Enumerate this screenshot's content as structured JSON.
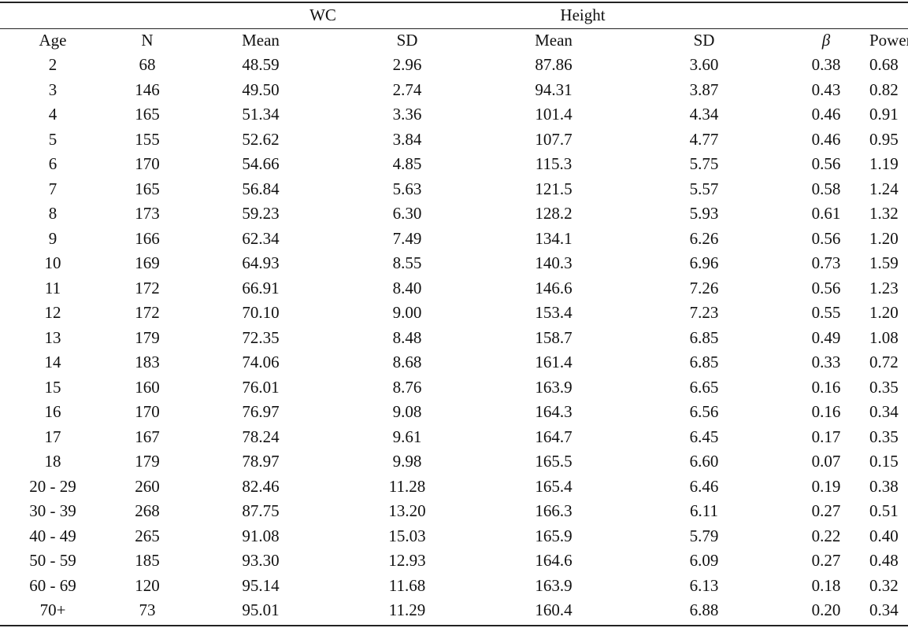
{
  "header": {
    "group_wc": "WC",
    "group_height": "Height",
    "columns": {
      "age": "Age",
      "n": "N",
      "wc_mean": "Mean",
      "wc_sd": "SD",
      "height_mean": "Mean",
      "height_sd": "SD",
      "beta": "β",
      "power": "Power"
    }
  },
  "rows": [
    {
      "age": "2",
      "n": "68",
      "wc_mean": "48.59",
      "wc_sd": "2.96",
      "height_mean": "87.86",
      "height_sd": "3.60",
      "beta": "0.38",
      "power": "0.68"
    },
    {
      "age": "3",
      "n": "146",
      "wc_mean": "49.50",
      "wc_sd": "2.74",
      "height_mean": "94.31",
      "height_sd": "3.87",
      "beta": "0.43",
      "power": "0.82"
    },
    {
      "age": "4",
      "n": "165",
      "wc_mean": "51.34",
      "wc_sd": "3.36",
      "height_mean": "101.4",
      "height_sd": "4.34",
      "beta": "0.46",
      "power": "0.91"
    },
    {
      "age": "5",
      "n": "155",
      "wc_mean": "52.62",
      "wc_sd": "3.84",
      "height_mean": "107.7",
      "height_sd": "4.77",
      "beta": "0.46",
      "power": "0.95"
    },
    {
      "age": "6",
      "n": "170",
      "wc_mean": "54.66",
      "wc_sd": "4.85",
      "height_mean": "115.3",
      "height_sd": "5.75",
      "beta": "0.56",
      "power": "1.19"
    },
    {
      "age": "7",
      "n": "165",
      "wc_mean": "56.84",
      "wc_sd": "5.63",
      "height_mean": "121.5",
      "height_sd": "5.57",
      "beta": "0.58",
      "power": "1.24"
    },
    {
      "age": "8",
      "n": "173",
      "wc_mean": "59.23",
      "wc_sd": "6.30",
      "height_mean": "128.2",
      "height_sd": "5.93",
      "beta": "0.61",
      "power": "1.32"
    },
    {
      "age": "9",
      "n": "166",
      "wc_mean": "62.34",
      "wc_sd": "7.49",
      "height_mean": "134.1",
      "height_sd": "6.26",
      "beta": "0.56",
      "power": "1.20"
    },
    {
      "age": "10",
      "n": "169",
      "wc_mean": "64.93",
      "wc_sd": "8.55",
      "height_mean": "140.3",
      "height_sd": "6.96",
      "beta": "0.73",
      "power": "1.59"
    },
    {
      "age": "11",
      "n": "172",
      "wc_mean": "66.91",
      "wc_sd": "8.40",
      "height_mean": "146.6",
      "height_sd": "7.26",
      "beta": "0.56",
      "power": "1.23"
    },
    {
      "age": "12",
      "n": "172",
      "wc_mean": "70.10",
      "wc_sd": "9.00",
      "height_mean": "153.4",
      "height_sd": "7.23",
      "beta": "0.55",
      "power": "1.20"
    },
    {
      "age": "13",
      "n": "179",
      "wc_mean": "72.35",
      "wc_sd": "8.48",
      "height_mean": "158.7",
      "height_sd": "6.85",
      "beta": "0.49",
      "power": "1.08"
    },
    {
      "age": "14",
      "n": "183",
      "wc_mean": "74.06",
      "wc_sd": "8.68",
      "height_mean": "161.4",
      "height_sd": "6.85",
      "beta": "0.33",
      "power": "0.72"
    },
    {
      "age": "15",
      "n": "160",
      "wc_mean": "76.01",
      "wc_sd": "8.76",
      "height_mean": "163.9",
      "height_sd": "6.65",
      "beta": "0.16",
      "power": "0.35"
    },
    {
      "age": "16",
      "n": "170",
      "wc_mean": "76.97",
      "wc_sd": "9.08",
      "height_mean": "164.3",
      "height_sd": "6.56",
      "beta": "0.16",
      "power": "0.34"
    },
    {
      "age": "17",
      "n": "167",
      "wc_mean": "78.24",
      "wc_sd": "9.61",
      "height_mean": "164.7",
      "height_sd": "6.45",
      "beta": "0.17",
      "power": "0.35"
    },
    {
      "age": "18",
      "n": "179",
      "wc_mean": "78.97",
      "wc_sd": "9.98",
      "height_mean": "165.5",
      "height_sd": "6.60",
      "beta": "0.07",
      "power": "0.15"
    },
    {
      "age": "20 - 29",
      "n": "260",
      "wc_mean": "82.46",
      "wc_sd": "11.28",
      "height_mean": "165.4",
      "height_sd": "6.46",
      "beta": "0.19",
      "power": "0.38"
    },
    {
      "age": "30 - 39",
      "n": "268",
      "wc_mean": "87.75",
      "wc_sd": "13.20",
      "height_mean": "166.3",
      "height_sd": "6.11",
      "beta": "0.27",
      "power": "0.51"
    },
    {
      "age": "40 - 49",
      "n": "265",
      "wc_mean": "91.08",
      "wc_sd": "15.03",
      "height_mean": "165.9",
      "height_sd": "5.79",
      "beta": "0.22",
      "power": "0.40"
    },
    {
      "age": "50 - 59",
      "n": "185",
      "wc_mean": "93.30",
      "wc_sd": "12.93",
      "height_mean": "164.6",
      "height_sd": "6.09",
      "beta": "0.27",
      "power": "0.48"
    },
    {
      "age": "60 - 69",
      "n": "120",
      "wc_mean": "95.14",
      "wc_sd": "11.68",
      "height_mean": "163.9",
      "height_sd": "6.13",
      "beta": "0.18",
      "power": "0.32"
    },
    {
      "age": "70+",
      "n": "73",
      "wc_mean": "95.01",
      "wc_sd": "11.29",
      "height_mean": "160.4",
      "height_sd": "6.88",
      "beta": "0.20",
      "power": "0.34"
    }
  ]
}
